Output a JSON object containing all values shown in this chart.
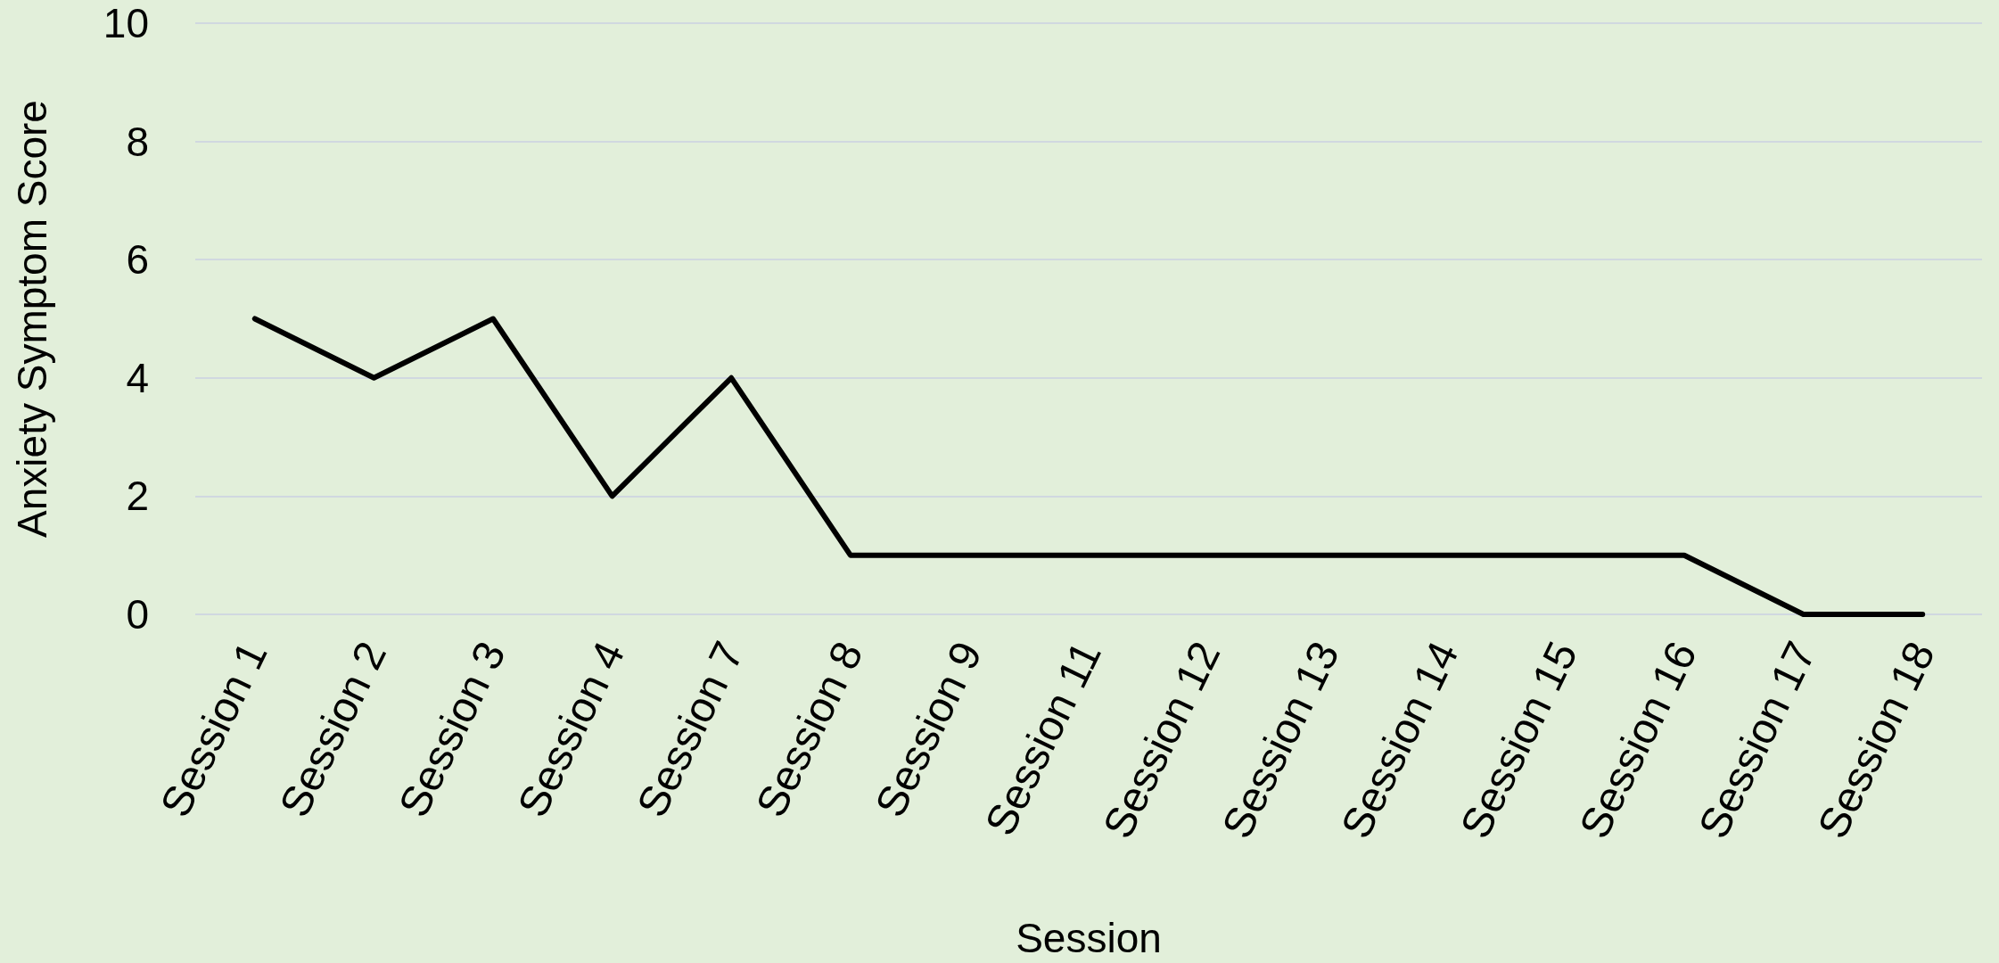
{
  "chart_data": {
    "type": "line",
    "xlabel": "Session",
    "ylabel": "Anxiety Symptom Score",
    "categories": [
      "Session 1",
      "Session 2",
      "Session 3",
      "Session 4",
      "Session 7",
      "Session 8",
      "Session 9",
      "Session 11",
      "Session 12",
      "Session 13",
      "Session 14",
      "Session 15",
      "Session 16",
      "Session 17",
      "Session 18"
    ],
    "series": [
      {
        "color": "#000000",
        "values": [
          5,
          4,
          5,
          2,
          4,
          1,
          1,
          1,
          1,
          1,
          1,
          1,
          1,
          0,
          0
        ]
      }
    ],
    "ylim": [
      0,
      10
    ],
    "yticks": [
      0,
      2,
      4,
      6,
      8,
      10
    ],
    "grid": "y",
    "marker": "none",
    "line_style": "solid"
  }
}
